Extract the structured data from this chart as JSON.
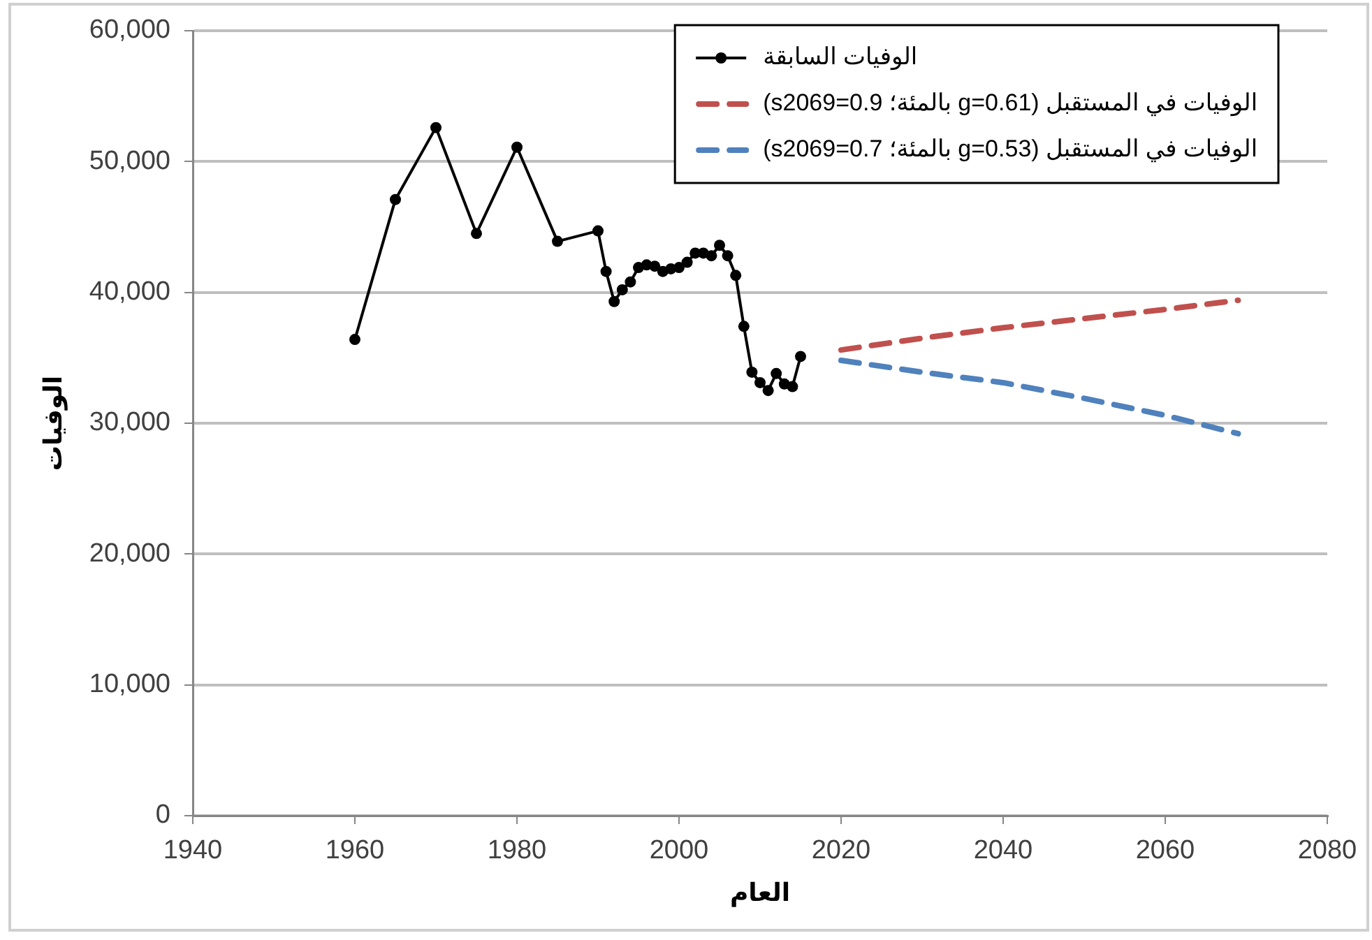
{
  "chart_data": {
    "type": "line",
    "xlabel": "العام",
    "ylabel": "الوفيات",
    "series": [
      {
        "name": "الوفيات السابقة",
        "color": "#000000",
        "marker": "circle",
        "line_style": "solid",
        "x": [
          1960,
          1965,
          1970,
          1975,
          1980,
          1985,
          1990,
          1991,
          1992,
          1993,
          1994,
          1995,
          1996,
          1997,
          1998,
          1999,
          2000,
          2001,
          2002,
          2003,
          2004,
          2005,
          2006,
          2007,
          2008,
          2009,
          2010,
          2011,
          2012,
          2013,
          2014,
          2015
        ],
        "values": [
          36400,
          47100,
          52600,
          44500,
          51100,
          43900,
          44700,
          41600,
          39300,
          40200,
          40800,
          41900,
          42100,
          42000,
          41600,
          41800,
          41900,
          42300,
          43000,
          43000,
          42800,
          43600,
          42800,
          41300,
          37400,
          33900,
          33100,
          32500,
          33800,
          33000,
          32800,
          35100
        ]
      },
      {
        "name": "الوفيات في المستقبل (g=0.61 بالمئة؛ s2069=0.9)",
        "color": "#c0504d",
        "marker": "none",
        "line_style": "dashed",
        "x": [
          2020,
          2030,
          2040,
          2050,
          2060,
          2069
        ],
        "values": [
          35600,
          36500,
          37300,
          38000,
          38700,
          39400
        ]
      },
      {
        "name": "الوفيات في المستقبل (g=0.53 بالمئة؛ s2069=0.7)",
        "color": "#4f81bd",
        "marker": "none",
        "line_style": "dashed",
        "x": [
          2020,
          2030,
          2040,
          2050,
          2060,
          2069
        ],
        "values": [
          34800,
          33900,
          33100,
          31900,
          30600,
          29200
        ]
      }
    ],
    "xlim": [
      1940,
      2080
    ],
    "xticks": [
      1940,
      1960,
      1980,
      2000,
      2020,
      2040,
      2060,
      2080
    ],
    "ylim": [
      0,
      60000
    ],
    "yticks": [
      0,
      {
        "value": 10000,
        "label": "10,000"
      },
      {
        "value": 20000,
        "label": "20,000"
      },
      {
        "value": 30000,
        "label": "30,000"
      },
      {
        "value": 40000,
        "label": "40,000"
      },
      {
        "value": 50000,
        "label": "50,000"
      },
      {
        "value": 60000,
        "label": "60,000"
      }
    ],
    "grid": "y",
    "legend": "top right"
  }
}
